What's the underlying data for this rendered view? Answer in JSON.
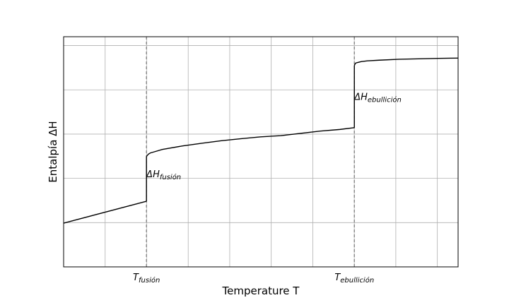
{
  "chart_data": {
    "type": "line",
    "xlabel": "Temperature T",
    "ylabel": "Entalpía ΔH",
    "xlim": [
      0,
      1
    ],
    "ylim": [
      0,
      1
    ],
    "grid": true,
    "x_ticks": [
      {
        "main": "T",
        "sub": "fusión",
        "x": 0.21
      },
      {
        "main": "T",
        "sub": "ebullición",
        "x": 0.737
      }
    ],
    "vlines": [
      {
        "x": 0.21,
        "style": "dashed",
        "color": "#808080"
      },
      {
        "x": 0.737,
        "style": "dashed",
        "color": "#808080"
      }
    ],
    "annotations": [
      {
        "main": "ΔH",
        "sub": "fusión",
        "x": 0.21,
        "y": 0.39
      },
      {
        "main": "ΔH",
        "sub": "ebullición",
        "x": 0.737,
        "y": 0.725
      }
    ],
    "series": [
      {
        "color": "#000000",
        "segments": [
          {
            "x": [
              0.0,
              0.21
            ],
            "y": [
              0.19,
              0.285
            ]
          },
          {
            "x": [
              0.21,
              0.21
            ],
            "y": [
              0.285,
              0.48
            ]
          },
          {
            "x": [
              0.21,
              0.215,
              0.22,
              0.23,
              0.25,
              0.3,
              0.35,
              0.4,
              0.45,
              0.5,
              0.55,
              0.6,
              0.65,
              0.7,
              0.737
            ],
            "y": [
              0.48,
              0.49,
              0.495,
              0.5,
              0.51,
              0.525,
              0.537,
              0.548,
              0.557,
              0.565,
              0.57,
              0.58,
              0.59,
              0.597,
              0.605
            ]
          },
          {
            "x": [
              0.737,
              0.737
            ],
            "y": [
              0.605,
              0.875
            ]
          },
          {
            "x": [
              0.737,
              0.74,
              0.745,
              0.755,
              0.77,
              0.8,
              0.85,
              0.9,
              0.95,
              1.0
            ],
            "y": [
              0.875,
              0.885,
              0.888,
              0.892,
              0.895,
              0.898,
              0.902,
              0.904,
              0.906,
              0.907
            ]
          }
        ]
      }
    ]
  }
}
